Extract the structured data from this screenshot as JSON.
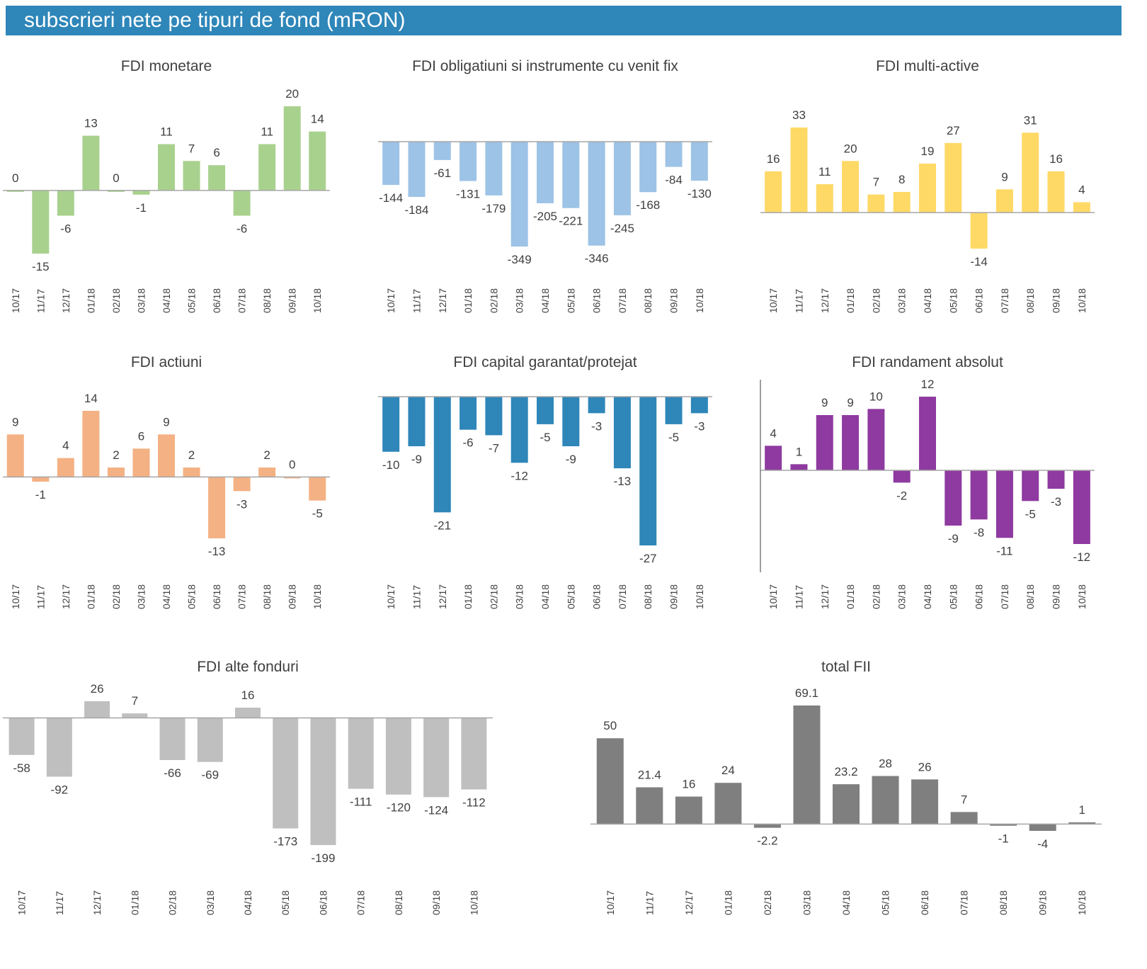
{
  "header": {
    "title": "subscrieri nete pe tipuri de fond (mRON)"
  },
  "chart_data": [
    {
      "type": "bar",
      "title": "FDI monetare",
      "color": "#A9D18E",
      "categories": [
        "10/17",
        "11/17",
        "12/17",
        "01/18",
        "02/18",
        "03/18",
        "04/18",
        "05/18",
        "06/18",
        "07/18",
        "08/18",
        "09/18",
        "10/18"
      ],
      "values": [
        0,
        -15,
        -6,
        13,
        0,
        -1,
        11,
        7,
        6,
        -6,
        11,
        20,
        14
      ]
    },
    {
      "type": "bar",
      "title": "FDI obligatiuni si instrumente cu venit fix",
      "color": "#9DC3E6",
      "categories": [
        "10/17",
        "11/17",
        "12/17",
        "01/18",
        "02/18",
        "03/18",
        "04/18",
        "05/18",
        "06/18",
        "07/18",
        "08/18",
        "09/18",
        "10/18"
      ],
      "values": [
        -144,
        -184,
        -61,
        -131,
        -179,
        -349,
        -205,
        -221,
        -346,
        -245,
        -168,
        -84,
        -130
      ]
    },
    {
      "type": "bar",
      "title": "FDI multi-active",
      "color": "#FFD966",
      "categories": [
        "10/17",
        "11/17",
        "12/17",
        "01/18",
        "02/18",
        "03/18",
        "04/18",
        "05/18",
        "06/18",
        "07/18",
        "08/18",
        "09/18",
        "10/18"
      ],
      "values": [
        16,
        33,
        11,
        20,
        7,
        8,
        19,
        27,
        -14,
        9,
        31,
        16,
        4
      ]
    },
    {
      "type": "bar",
      "title": "FDI actiuni",
      "color": "#F4B183",
      "categories": [
        "10/17",
        "11/17",
        "12/17",
        "01/18",
        "02/18",
        "03/18",
        "04/18",
        "05/18",
        "06/18",
        "07/18",
        "08/18",
        "09/18",
        "10/18"
      ],
      "values": [
        9,
        -1,
        4,
        14,
        2,
        6,
        9,
        2,
        -13,
        -3,
        2,
        0,
        -5
      ]
    },
    {
      "type": "bar",
      "title": "FDI capital garantat/protejat",
      "color": "#2E86B9",
      "categories": [
        "10/17",
        "11/17",
        "12/17",
        "01/18",
        "02/18",
        "03/18",
        "04/18",
        "05/18",
        "06/18",
        "07/18",
        "08/18",
        "09/18",
        "10/18"
      ],
      "values": [
        -10,
        -9,
        -21,
        -6,
        -7,
        -12,
        -5,
        -9,
        -3,
        -13,
        -27,
        -5,
        -3
      ]
    },
    {
      "type": "bar",
      "title": "FDI randament absolut",
      "color": "#8E3AA0",
      "categories": [
        "10/17",
        "11/17",
        "12/17",
        "01/18",
        "02/18",
        "03/18",
        "04/18",
        "05/18",
        "06/18",
        "07/18",
        "08/18",
        "09/18",
        "10/18"
      ],
      "values": [
        4,
        1,
        9,
        9,
        10,
        -2,
        12,
        -9,
        -8,
        -11,
        -5,
        -3,
        -12
      ]
    },
    {
      "type": "bar",
      "title": "FDI alte fonduri",
      "color": "#BFBFBF",
      "categories": [
        "10/17",
        "11/17",
        "12/17",
        "01/18",
        "02/18",
        "03/18",
        "04/18",
        "05/18",
        "06/18",
        "07/18",
        "08/18",
        "09/18",
        "10/18"
      ],
      "values": [
        -58,
        -92,
        26,
        7,
        -66,
        -69,
        16,
        -173,
        -199,
        -111,
        -120,
        -124,
        -112
      ]
    },
    {
      "type": "bar",
      "title": "total FII",
      "color": "#7F7F7F",
      "categories": [
        "10/17",
        "11/17",
        "12/17",
        "01/18",
        "02/18",
        "03/18",
        "04/18",
        "05/18",
        "06/18",
        "07/18",
        "08/18",
        "09/18",
        "10/18"
      ],
      "values": [
        50,
        21.4,
        16,
        24,
        -2.2,
        69.1,
        23.2,
        28,
        26,
        7,
        -1,
        -4,
        1
      ]
    }
  ]
}
